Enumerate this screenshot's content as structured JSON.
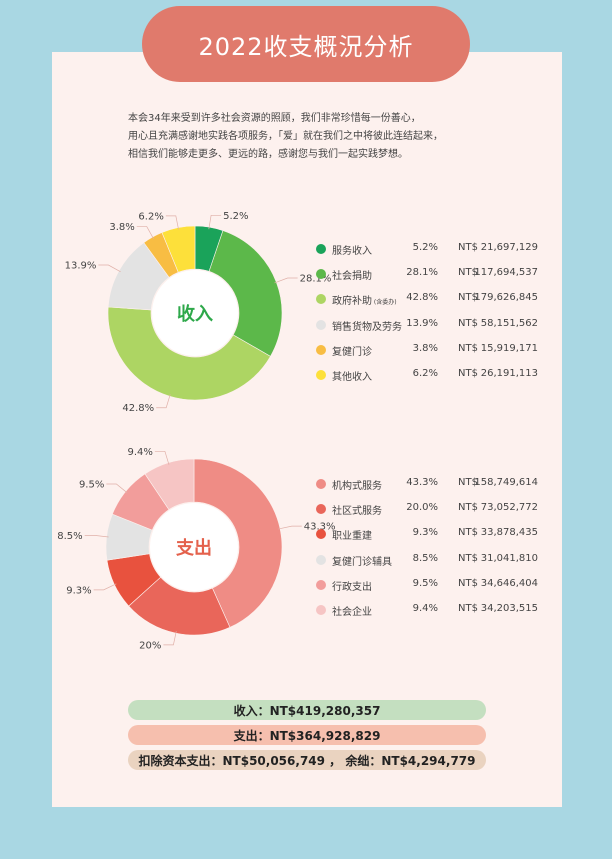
{
  "title": "2022收支概況分析",
  "intro": [
    "本会34年来受到许多社会资源的照顾，我们非常珍惜每一份善心，",
    "用心且充满感谢地实践各项服务，「爱」就在我们之中将彼此连结起来，",
    "相信我们能够走更多、更远的路，感谢您与我们一起实践梦想。"
  ],
  "income": {
    "center_label": "收入",
    "center_color": "#2ea84a",
    "items": [
      {
        "name": "服务收入",
        "percent": "5.2%",
        "currency": "NT$",
        "amount": "21,697,129",
        "color": "#1aa35a"
      },
      {
        "name": "社会捐助",
        "percent": "28.1%",
        "currency": "NT$",
        "amount": "117,694,537",
        "color": "#5cb84a"
      },
      {
        "name": "政府补助",
        "note": "(含委办)",
        "percent": "42.8%",
        "currency": "NT$",
        "amount": "179,626,845",
        "color": "#add563"
      },
      {
        "name": "销售货物及劳务",
        "percent": "13.9%",
        "currency": "NT$",
        "amount": "58,151,562",
        "color": "#e3e3e3"
      },
      {
        "name": "复健门诊",
        "percent": "3.8%",
        "currency": "NT$",
        "amount": "15,919,171",
        "color": "#f8bd43"
      },
      {
        "name": "其他收入",
        "percent": "6.2%",
        "currency": "NT$",
        "amount": "26,191,113",
        "color": "#fde03a"
      }
    ]
  },
  "expense": {
    "center_label": "支出",
    "center_color": "#e4614c",
    "items": [
      {
        "name": "机构式服务",
        "percent": "43.3%",
        "label": "43.3%",
        "currency": "NT$",
        "amount": "158,749,614",
        "color": "#ef8c85"
      },
      {
        "name": "社区式服务",
        "percent": "20.0%",
        "label": "20%",
        "currency": "NT$",
        "amount": "73,052,772",
        "color": "#e9665a"
      },
      {
        "name": "职业重建",
        "percent": "9.3%",
        "label": "9.3%",
        "currency": "NT$",
        "amount": "33,878,435",
        "color": "#e8523e"
      },
      {
        "name": "复健门诊辅具",
        "percent": "8.5%",
        "label": "8.5%",
        "currency": "NT$",
        "amount": "31,041,810",
        "color": "#e3e3e3"
      },
      {
        "name": "行政支出",
        "percent": "9.5%",
        "label": "9.5%",
        "currency": "NT$",
        "amount": "34,646,404",
        "color": "#f29d9b"
      },
      {
        "name": "社会企业",
        "percent": "9.4%",
        "label": "9.4%",
        "currency": "NT$",
        "amount": "34,203,515",
        "color": "#f6c5c4"
      }
    ]
  },
  "summary": {
    "income_text": "收入：NT$419,280,357",
    "expense_text": "支出：NT$364,928,829",
    "net_text": "扣除资本支出：NT$50,056,749 ， 余绌：NT$4,294,779",
    "income_color": "#c4dfc0",
    "expense_color": "#f6bfae",
    "net_color": "#ead3c0"
  },
  "chart_data": [
    {
      "type": "pie",
      "title": "收入",
      "categories": [
        "服务收入",
        "社会捐助",
        "政府补助",
        "销售货物及劳务",
        "复健门诊",
        "其他收入"
      ],
      "values": [
        5.2,
        28.1,
        42.8,
        13.9,
        3.8,
        6.2
      ],
      "amounts": [
        21697129,
        117694537,
        179626845,
        58151562,
        15919171,
        26191113
      ]
    },
    {
      "type": "pie",
      "title": "支出",
      "categories": [
        "机构式服务",
        "社区式服务",
        "职业重建",
        "复健门诊辅具",
        "行政支出",
        "社会企业"
      ],
      "values": [
        43.3,
        20.0,
        9.3,
        8.5,
        9.5,
        9.4
      ],
      "amounts": [
        158749614,
        73052772,
        33878435,
        31041810,
        34646404,
        34203515
      ]
    }
  ]
}
